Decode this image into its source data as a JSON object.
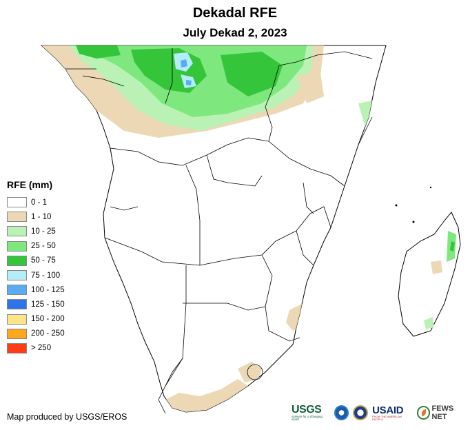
{
  "header": {
    "title": "Dekadal RFE",
    "subtitle": "July Dekad 2, 2023"
  },
  "legend": {
    "title": "RFE (mm)",
    "classes": [
      {
        "label": "0 - 1",
        "color": "#ffffff"
      },
      {
        "label": "1 - 10",
        "color": "#ecd8b5"
      },
      {
        "label": "10 - 25",
        "color": "#b9f2b4"
      },
      {
        "label": "25 - 50",
        "color": "#7ee77e"
      },
      {
        "label": "50 - 75",
        "color": "#35c53b"
      },
      {
        "label": "75 - 100",
        "color": "#b4ecf7"
      },
      {
        "label": "100 - 125",
        "color": "#58acf1"
      },
      {
        "label": "125 - 150",
        "color": "#2d73ea"
      },
      {
        "label": "150 - 200",
        "color": "#fde489"
      },
      {
        "label": "200 - 250",
        "color": "#fda71c"
      },
      {
        "label": "> 250",
        "color": "#ff3d12"
      }
    ]
  },
  "credit": "Map produced by USGS/EROS",
  "logos": {
    "usgs": "USGS",
    "usgs_tagline": "science for a changing world",
    "usaid": "USAID",
    "usaid_tagline": "FROM THE AMERICAN PEOPLE",
    "fews": "FEWS NET"
  },
  "map": {
    "region": "Southern and Eastern Africa",
    "colors": {
      "land": "#ffffff",
      "border": "#000000",
      "dry": "#ecd8b5",
      "light": "#b9f2b4",
      "moderate": "#7ee77e",
      "heavy": "#35c53b",
      "veryheavy": "#b4ecf7",
      "extreme": "#58acf1"
    }
  }
}
